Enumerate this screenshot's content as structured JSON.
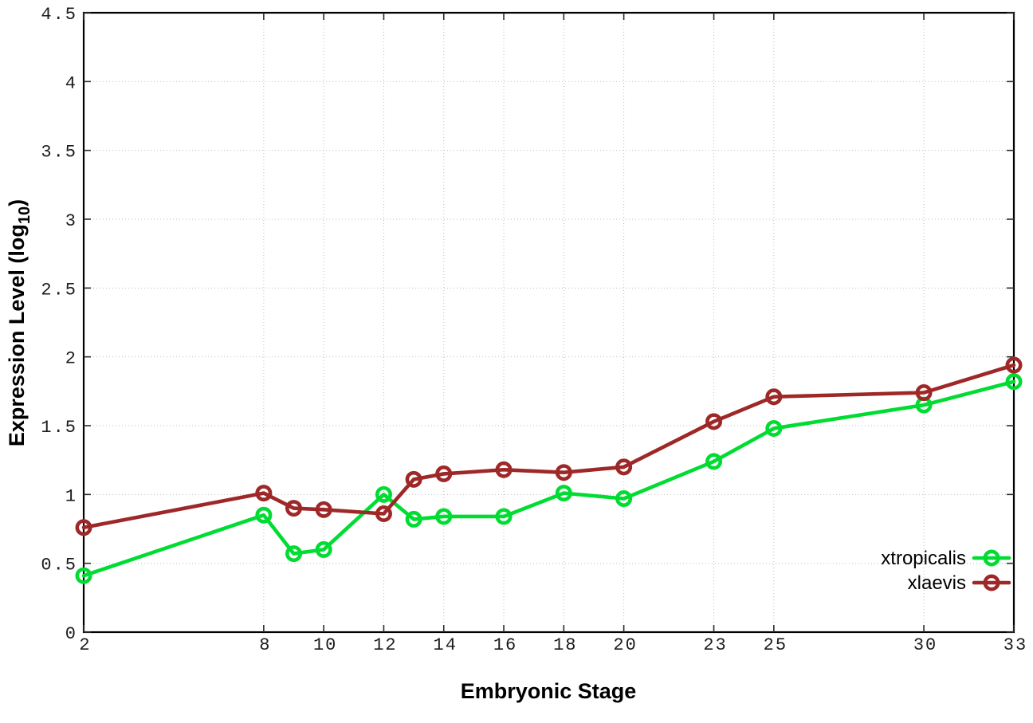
{
  "figure": {
    "background": "#ffffff",
    "border_color": "#000000",
    "grid_color": "#bdbdbd"
  },
  "chart_data": {
    "type": "line",
    "title": "",
    "xlabel": "Embryonic Stage",
    "ylabel": "Expression Level (log10)",
    "ylabel_parts": {
      "main": "Expression Level (log",
      "sub": "10",
      "close": ")"
    },
    "xlim": [
      2,
      33
    ],
    "ylim": [
      0,
      4.5
    ],
    "xticks": [
      2,
      8,
      10,
      12,
      14,
      16,
      18,
      20,
      23,
      25,
      30,
      33
    ],
    "yticks": [
      0,
      0.5,
      1,
      1.5,
      2,
      2.5,
      3,
      3.5,
      4,
      4.5
    ],
    "grid": true,
    "legend_position": "bottom-right",
    "x": [
      2,
      8,
      9,
      10,
      12,
      13,
      14,
      16,
      18,
      20,
      23,
      25,
      30,
      33
    ],
    "series": [
      {
        "name": "xtropicalis",
        "color": "#00dc32",
        "values": [
          0.41,
          0.85,
          0.57,
          0.6,
          1.0,
          0.82,
          0.84,
          0.84,
          1.01,
          0.97,
          1.24,
          1.48,
          1.65,
          1.82
        ]
      },
      {
        "name": "xlaevis",
        "color": "#9e2828",
        "values": [
          0.76,
          1.01,
          0.9,
          0.89,
          0.86,
          1.11,
          1.15,
          1.18,
          1.16,
          1.2,
          1.53,
          1.71,
          1.74,
          1.94
        ]
      }
    ]
  }
}
